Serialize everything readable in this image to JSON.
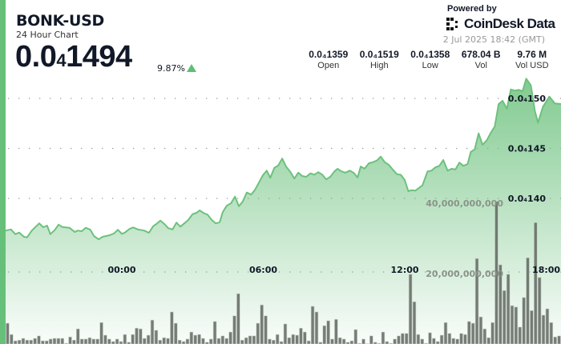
{
  "header": {
    "symbol": "BONK-USD",
    "subtitle": "24 Hour Chart",
    "price_main": "0.0",
    "price_sub": "4",
    "price_rest": "1494",
    "change": "9.87%",
    "change_direction": "up"
  },
  "branding": {
    "powered_by": "Powered by",
    "logo_text": "CoinDesk Data",
    "date": "2 Jul 2025 18:42 (GMT)"
  },
  "stats": [
    {
      "value": "0.0₄1359",
      "label": "Open"
    },
    {
      "value": "0.0₄1519",
      "label": "High"
    },
    {
      "value": "0.0₄1358",
      "label": "Low"
    },
    {
      "value": "678.04 B",
      "label": "Vol"
    },
    {
      "value": "9.76 M",
      "label": "Vol USD"
    }
  ],
  "colors": {
    "accent": "#66c07a",
    "line": "#6cc17d",
    "up": "#5cbf74",
    "volume_bar": "#5f665f"
  },
  "chart_data": {
    "type": "area",
    "price_axis": {
      "ticks": [
        {
          "value": 1.5e-05,
          "label": "0.0₄150"
        },
        {
          "value": 1.45e-05,
          "label": "0.0₄145"
        },
        {
          "value": 1.4e-05,
          "label": "0.0₄140"
        }
      ],
      "position": "right"
    },
    "volume_axis": {
      "ticks": [
        {
          "value": 40000000000,
          "label": "40,000,000,000"
        },
        {
          "value": 20000000000,
          "label": "20,000,000,000"
        }
      ]
    },
    "x_ticks": [
      "00:00",
      "06:00",
      "12:00",
      "18:00"
    ],
    "grid": true,
    "price": [
      [
        "19:04",
        1.3678e-05
      ],
      [
        "19:18",
        1.369e-05
      ],
      [
        "19:29",
        1.3642e-05
      ],
      [
        "19:39",
        1.3658e-05
      ],
      [
        "19:51",
        1.3616e-05
      ],
      [
        "19:59",
        1.361e-05
      ],
      [
        "20:11",
        1.3678e-05
      ],
      [
        "20:30",
        1.375e-05
      ],
      [
        "20:40",
        1.3712e-05
      ],
      [
        "20:50",
        1.3728e-05
      ],
      [
        "20:58",
        1.3642e-05
      ],
      [
        "21:09",
        1.3682e-05
      ],
      [
        "21:19",
        1.3738e-05
      ],
      [
        "21:29",
        1.3714e-05
      ],
      [
        "21:47",
        1.3706e-05
      ],
      [
        "22:00",
        1.3664e-05
      ],
      [
        "22:08",
        1.3678e-05
      ],
      [
        "22:18",
        1.3672e-05
      ],
      [
        "22:28",
        1.3706e-05
      ],
      [
        "22:40",
        1.3686e-05
      ],
      [
        "22:49",
        1.3624e-05
      ],
      [
        "23:01",
        1.359e-05
      ],
      [
        "23:11",
        1.3616e-05
      ],
      [
        "23:29",
        1.3632e-05
      ],
      [
        "23:40",
        1.365e-05
      ],
      [
        "23:50",
        1.3686e-05
      ],
      [
        "00:00",
        1.3646e-05
      ],
      [
        "00:08",
        1.3658e-05
      ],
      [
        "00:20",
        1.3696e-05
      ],
      [
        "00:29",
        1.371e-05
      ],
      [
        "00:41",
        1.369e-05
      ],
      [
        "00:57",
        1.3678e-05
      ],
      [
        "01:09",
        1.3656e-05
      ],
      [
        "01:20",
        1.3722e-05
      ],
      [
        "01:28",
        1.3744e-05
      ],
      [
        "01:38",
        1.3778e-05
      ],
      [
        "01:50",
        1.3738e-05
      ],
      [
        "01:58",
        1.3702e-05
      ],
      [
        "02:09",
        1.369e-05
      ],
      [
        "02:19",
        1.3758e-05
      ],
      [
        "02:29",
        1.3718e-05
      ],
      [
        "02:39",
        1.375e-05
      ],
      [
        "02:49",
        1.3784e-05
      ],
      [
        "03:00",
        1.3842e-05
      ],
      [
        "03:10",
        1.3856e-05
      ],
      [
        "03:18",
        1.388e-05
      ],
      [
        "03:30",
        1.385e-05
      ],
      [
        "03:38",
        1.3838e-05
      ],
      [
        "03:49",
        1.3784e-05
      ],
      [
        "03:59",
        1.375e-05
      ],
      [
        "04:09",
        1.3762e-05
      ],
      [
        "04:17",
        1.3864e-05
      ],
      [
        "04:27",
        1.3926e-05
      ],
      [
        "04:38",
        1.3952e-05
      ],
      [
        "04:48",
        1.4018e-05
      ],
      [
        "04:58",
        1.3922e-05
      ],
      [
        "05:08",
        1.397e-05
      ],
      [
        "05:18",
        1.4058e-05
      ],
      [
        "05:29",
        1.4038e-05
      ],
      [
        "05:39",
        1.4086e-05
      ],
      [
        "05:49",
        1.4158e-05
      ],
      [
        "05:59",
        1.4232e-05
      ],
      [
        "06:09",
        1.4278e-05
      ],
      [
        "06:18",
        1.4206e-05
      ],
      [
        "06:28",
        1.4304e-05
      ],
      [
        "06:38",
        1.433e-05
      ],
      [
        "06:48",
        1.4398e-05
      ],
      [
        "06:58",
        1.4318e-05
      ],
      [
        "07:09",
        1.4264e-05
      ],
      [
        "07:19",
        1.4198e-05
      ],
      [
        "07:29",
        1.4258e-05
      ],
      [
        "07:39",
        1.4224e-05
      ],
      [
        "07:49",
        1.4216e-05
      ],
      [
        "08:00",
        1.425e-05
      ],
      [
        "08:10",
        1.4238e-05
      ],
      [
        "08:20",
        1.4262e-05
      ],
      [
        "08:30",
        1.4238e-05
      ],
      [
        "08:40",
        1.419e-05
      ],
      [
        "08:51",
        1.4218e-05
      ],
      [
        "09:01",
        1.427e-05
      ],
      [
        "09:09",
        1.4296e-05
      ],
      [
        "09:19",
        1.427e-05
      ],
      [
        "09:29",
        1.4258e-05
      ],
      [
        "09:40",
        1.4278e-05
      ],
      [
        "09:50",
        1.4256e-05
      ],
      [
        "10:00",
        1.421e-05
      ],
      [
        "10:08",
        1.4318e-05
      ],
      [
        "10:18",
        1.4298e-05
      ],
      [
        "10:29",
        1.4352e-05
      ],
      [
        "10:39",
        1.4362e-05
      ],
      [
        "10:49",
        1.4378e-05
      ],
      [
        "10:59",
        1.4418e-05
      ],
      [
        "11:09",
        1.4362e-05
      ],
      [
        "11:20",
        1.4334e-05
      ],
      [
        "11:30",
        1.4286e-05
      ],
      [
        "11:40",
        1.4242e-05
      ],
      [
        "11:50",
        1.4236e-05
      ],
      [
        "12:00",
        1.4184e-05
      ],
      [
        "12:09",
        1.4072e-05
      ],
      [
        "12:17",
        1.4082e-05
      ],
      [
        "12:27",
        1.4078e-05
      ],
      [
        "12:45",
        1.413e-05
      ],
      [
        "12:58",
        1.427e-05
      ],
      [
        "13:08",
        1.4278e-05
      ],
      [
        "13:18",
        1.431e-05
      ],
      [
        "13:28",
        1.4326e-05
      ],
      [
        "13:38",
        1.4384e-05
      ],
      [
        "13:49",
        1.4278e-05
      ],
      [
        "13:59",
        1.4296e-05
      ],
      [
        "14:09",
        1.429e-05
      ],
      [
        "14:19",
        1.4358e-05
      ],
      [
        "14:29",
        1.4326e-05
      ],
      [
        "14:40",
        1.4344e-05
      ],
      [
        "14:48",
        1.4464e-05
      ],
      [
        "14:58",
        1.449e-05
      ],
      [
        "15:08",
        1.465e-05
      ],
      [
        "15:18",
        1.4536e-05
      ],
      [
        "15:29",
        1.4582e-05
      ],
      [
        "15:39",
        1.4656e-05
      ],
      [
        "15:49",
        1.4718e-05
      ],
      [
        "15:59",
        1.4944e-05
      ],
      [
        "16:09",
        1.4976e-05
      ],
      [
        "16:20",
        1.4896e-05
      ],
      [
        "16:30",
        1.509e-05
      ],
      [
        "16:40",
        1.5078e-05
      ],
      [
        "16:50",
        1.5086e-05
      ],
      [
        "17:00",
        1.5072e-05
      ],
      [
        "17:09",
        1.5198e-05
      ],
      [
        "17:21",
        1.513e-05
      ],
      [
        "17:31",
        1.4878e-05
      ],
      [
        "17:39",
        1.4758e-05
      ],
      [
        "17:52",
        1.4918e-05
      ],
      [
        "18:08",
        1.5018e-05
      ],
      [
        "18:22",
        1.495e-05
      ],
      [
        "18:38",
        1.4944e-05
      ]
    ],
    "volume": [
      5900000000.0,
      2700000000.0,
      900000000.0,
      1100000000.0,
      1600000000.0,
      1100000000.0,
      1100000000.0,
      1600000000.0,
      2300000000.0,
      900000000.0,
      900000000.0,
      1400000000.0,
      1600000000.0,
      1600000000.0,
      1600000000.0,
      200000000.0,
      2000000000.0,
      1100000000.0,
      4300000000.0,
      1400000000.0,
      1400000000.0,
      1800000000.0,
      1400000000.0,
      1400000000.0,
      6100000000.0,
      2500000000.0,
      1400000000.0,
      700000000.0,
      1400000000.0,
      700000000.0,
      2700000000.0,
      500000000.0,
      2700000000.0,
      4500000000.0,
      4300000000.0,
      1600000000.0,
      2500000000.0,
      6800000000.0,
      3900000000.0,
      1100000000.0,
      1800000000.0,
      1600000000.0,
      9100000000.0,
      5900000000.0,
      1100000000.0,
      700000000.0,
      1400000000.0,
      3400000000.0,
      2500000000.0,
      2700000000.0,
      1600000000.0,
      500000000.0,
      1400000000.0,
      6400000000.0,
      1600000000.0,
      2300000000.0,
      1600000000.0,
      3400000000.0,
      8000000000.0,
      14300000000.0,
      1100000000.0,
      1800000000.0,
      2300000000.0,
      2300000000.0,
      5900000000.0,
      11100000000.0,
      8000000000.0,
      1400000000.0,
      1100000000.0,
      2700000000.0,
      700000000.0,
      5700000000.0,
      1800000000.0,
      2700000000.0,
      2500000000.0,
      4500000000.0,
      3400000000.0,
      900000000.0,
      10700000000.0,
      9100000000.0,
      500000000.0,
      5200000000.0,
      6600000000.0,
      1400000000.0,
      7000000000.0,
      1800000000.0,
      1400000000.0,
      500000000.0,
      900000000.0,
      4100000000.0,
      200000000.0,
      1400000000.0,
      100000000.0,
      2300000000.0,
      500000000.0,
      200000000.0,
      3400000000.0,
      700000000.0,
      200000000.0,
      1400000000.0,
      2300000000.0,
      3000000000.0,
      3000000000.0,
      19800000000.0,
      12000000000.0,
      2700000000.0,
      1400000000.0,
      200000000.0,
      3200000000.0,
      1600000000.0,
      700000000.0,
      2500000000.0,
      6100000000.0,
      3000000000.0,
      1600000000.0,
      1400000000.0,
      3000000000.0,
      2700000000.0,
      6400000000.0,
      5900000000.0,
      24300000000.0,
      7700000000.0,
      4300000000.0,
      1800000000.0,
      6100000000.0,
      40500000000.0,
      22500000000.0,
      15200000000.0,
      19800000000.0,
      10900000000.0,
      10500000000.0,
      4800000000.0,
      13200000000.0,
      24500000000.0,
      9500000000.0,
      34500000000.0,
      18900000000.0,
      8200000000.0,
      10000000000.0,
      6100000000.0,
      2000000000.0,
      2300000000.0
    ]
  }
}
